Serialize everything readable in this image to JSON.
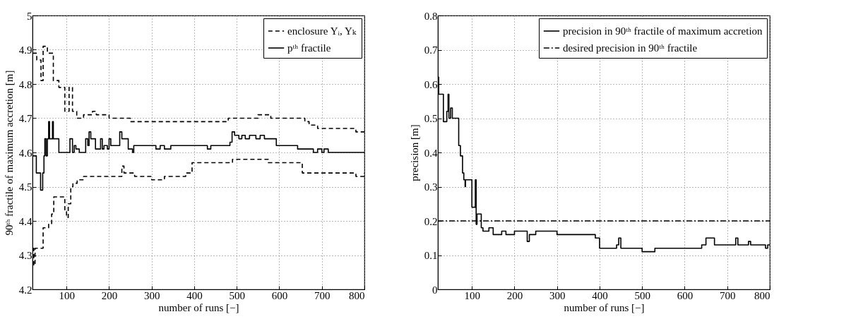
{
  "chart_data": [
    {
      "type": "step",
      "xlabel": "number of runs [−]",
      "ylabel": "90ᵗʰ fractile of maximum accretion [m]",
      "xlim": [
        20,
        800
      ],
      "xticks": [
        100,
        200,
        300,
        400,
        500,
        600,
        700,
        800
      ],
      "ylim": [
        4.2,
        5
      ],
      "yticks": [
        4.2,
        4.3,
        4.4,
        4.5,
        4.6,
        4.7,
        4.8,
        4.9,
        5
      ],
      "grid": true,
      "legend": "top right",
      "series": [
        {
          "name": "enclosure Yᵢ, Yₖ",
          "color": "#000000",
          "line_style": "dashed",
          "x": [
            20,
            30,
            40,
            45,
            55,
            69,
            82,
            96,
            106,
            114,
            124,
            140,
            161,
            170,
            200,
            250,
            480,
            540,
            550,
            580,
            660,
            670,
            690,
            780,
            800
          ],
          "values": [
            4.89,
            4.87,
            4.81,
            4.91,
            4.89,
            4.81,
            4.79,
            4.72,
            4.79,
            4.72,
            4.7,
            4.71,
            4.72,
            4.71,
            4.7,
            4.69,
            4.7,
            4.7,
            4.71,
            4.7,
            4.69,
            4.68,
            4.67,
            4.66,
            4.66
          ]
        },
        {
          "name": "pᵗʰ fractile",
          "color": "#000000",
          "line_style": "solid",
          "x": [
            20,
            29,
            39,
            44,
            47,
            49,
            52,
            55,
            58,
            60,
            67,
            69,
            82,
            108,
            114,
            118,
            122,
            130,
            145,
            150,
            153,
            157,
            168,
            180,
            184,
            188,
            196,
            200,
            204,
            225,
            230,
            245,
            255,
            258,
            310,
            320,
            330,
            345,
            431,
            439,
            484,
            489,
            495,
            505,
            512,
            520,
            530,
            545,
            555,
            565,
            593,
            643,
            680,
            690,
            700,
            705,
            715,
            800
          ],
          "values": [
            4.59,
            4.54,
            4.49,
            4.54,
            4.59,
            4.64,
            4.59,
            4.64,
            4.69,
            4.64,
            4.69,
            4.64,
            4.6,
            4.64,
            4.6,
            4.62,
            4.61,
            4.6,
            4.64,
            4.62,
            4.66,
            4.64,
            4.61,
            4.64,
            4.61,
            4.62,
            4.61,
            4.64,
            4.62,
            4.66,
            4.64,
            4.61,
            4.6,
            4.62,
            4.61,
            4.62,
            4.61,
            4.62,
            4.61,
            4.62,
            4.63,
            4.66,
            4.65,
            4.64,
            4.65,
            4.64,
            4.65,
            4.64,
            4.65,
            4.64,
            4.62,
            4.61,
            4.6,
            4.61,
            4.6,
            4.61,
            4.6,
            4.6
          ]
        },
        {
          "color": "#000000",
          "line_style": "dashed",
          "x": [
            20,
            23,
            26,
            45,
            58,
            65,
            70,
            85,
            96,
            100,
            104,
            110,
            115,
            125,
            140,
            230,
            235,
            260,
            300,
            330,
            380,
            395,
            490,
            574,
            654,
            780,
            800
          ],
          "values": [
            4.32,
            4.27,
            4.32,
            4.38,
            4.39,
            4.42,
            4.47,
            4.47,
            4.43,
            4.41,
            4.45,
            4.5,
            4.51,
            4.52,
            4.53,
            4.56,
            4.54,
            4.53,
            4.52,
            4.53,
            4.54,
            4.57,
            4.58,
            4.57,
            4.54,
            4.53,
            4.54
          ]
        }
      ]
    },
    {
      "type": "step",
      "xlabel": "number of runs [−]",
      "ylabel": "precision [m]",
      "xlim": [
        20,
        800
      ],
      "xticks": [
        100,
        200,
        300,
        400,
        500,
        600,
        700,
        800
      ],
      "ylim": [
        0,
        0.8
      ],
      "yticks": [
        0,
        0.1,
        0.2,
        0.3,
        0.4,
        0.5,
        0.6,
        0.7,
        0.8
      ],
      "grid": true,
      "legend": "top right",
      "series": [
        {
          "name": "precision in 90ᵗʰ fractile of maximum accretion",
          "color": "#000000",
          "line_style": "solid",
          "x": [
            20,
            22,
            33,
            41,
            44,
            46,
            50,
            54,
            69,
            73,
            78,
            81,
            84,
            85,
            100,
            108,
            110,
            112,
            116,
            122,
            126,
            140,
            150,
            170,
            180,
            200,
            230,
            235,
            250,
            300,
            350,
            390,
            400,
            440,
            445,
            450,
            500,
            530,
            640,
            650,
            670,
            700,
            720,
            725,
            750,
            755,
            790,
            795,
            800
          ],
          "values": [
            0.62,
            0.57,
            0.49,
            0.52,
            0.57,
            0.5,
            0.53,
            0.5,
            0.42,
            0.39,
            0.34,
            0.32,
            0.3,
            0.32,
            0.24,
            0.32,
            0.19,
            0.22,
            0.22,
            0.18,
            0.17,
            0.18,
            0.16,
            0.17,
            0.16,
            0.17,
            0.14,
            0.16,
            0.17,
            0.16,
            0.16,
            0.15,
            0.12,
            0.13,
            0.15,
            0.12,
            0.11,
            0.12,
            0.13,
            0.15,
            0.13,
            0.13,
            0.15,
            0.13,
            0.14,
            0.13,
            0.12,
            0.13,
            0.13
          ]
        },
        {
          "name": "desired precision in 90ᵗʰ fractile",
          "type": "line",
          "color": "#000000",
          "line_style": "dashdot",
          "x": [
            20,
            800
          ],
          "values": [
            0.2,
            0.2
          ]
        }
      ]
    }
  ]
}
